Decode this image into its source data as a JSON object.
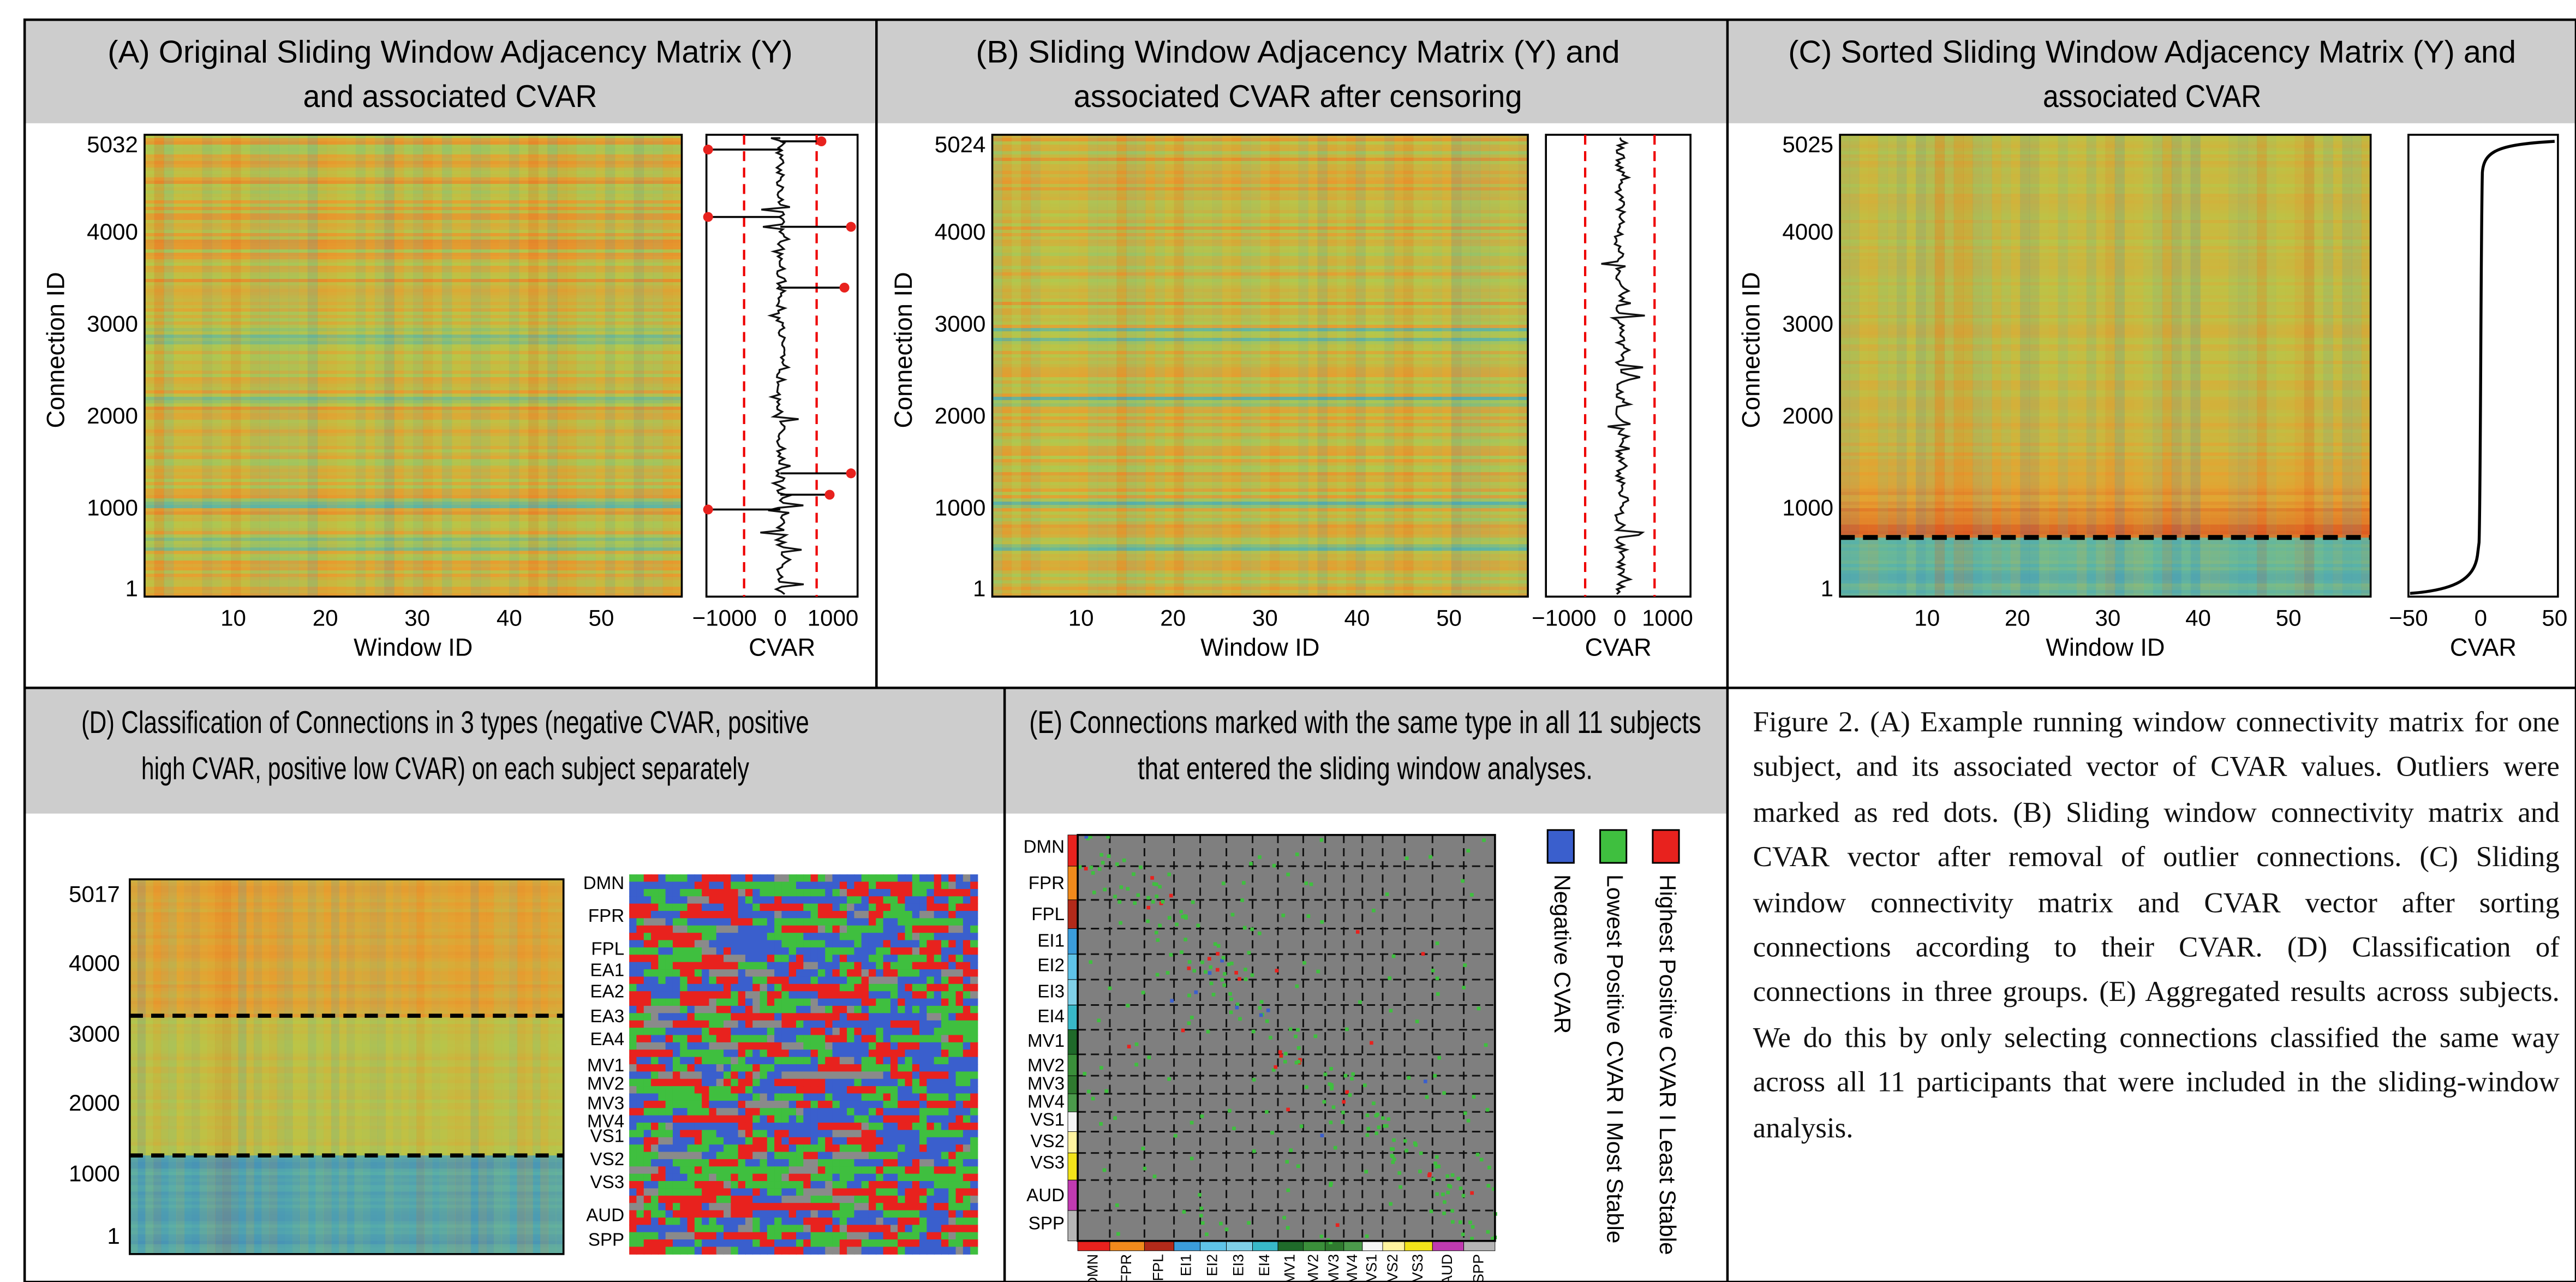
{
  "panels": {
    "a": {
      "title": [
        "(A) Original Sliding Window Adjacency Matrix (Y)",
        "and associated CVAR"
      ],
      "y_label": "Connection ID",
      "y_ticks": [
        "5032",
        "4000",
        "3000",
        "2000",
        "1000",
        "1"
      ],
      "x_label": "Window ID",
      "x_ticks": [
        "10",
        "20",
        "30",
        "40",
        "50"
      ],
      "cvar_label": "CVAR",
      "cvar_ticks": [
        "−1000",
        "0",
        "1000"
      ]
    },
    "b": {
      "title": [
        "(B) Sliding Window Adjacency Matrix (Y) and",
        "associated CVAR after censoring"
      ],
      "y_label": "Connection ID",
      "y_ticks": [
        "5024",
        "4000",
        "3000",
        "2000",
        "1000",
        "1"
      ],
      "x_label": "Window ID",
      "x_ticks": [
        "10",
        "20",
        "30",
        "40",
        "50"
      ],
      "cvar_label": "CVAR",
      "cvar_ticks": [
        "−1000",
        "0",
        "1000"
      ]
    },
    "c": {
      "title": [
        "(C) Sorted Sliding Window Adjacency Matrix (Y) and",
        "associated CVAR"
      ],
      "y_label": "Connection ID",
      "y_ticks": [
        "5025",
        "4000",
        "3000",
        "2000",
        "1000",
        "1"
      ],
      "x_label": "Window ID",
      "x_ticks": [
        "10",
        "20",
        "30",
        "40",
        "50"
      ],
      "cvar_label": "CVAR",
      "cvar_ticks": [
        "−50",
        "0",
        "50"
      ]
    },
    "d": {
      "title": [
        "(D) Classification of Connections in 3 types (negative CVAR, positive",
        "high CVAR, positive low CVAR) on each subject separately"
      ],
      "y_ticks": [
        "5017",
        "4000",
        "3000",
        "2000",
        "1000",
        "1"
      ],
      "networks": [
        "DMN",
        "FPR",
        "FPL",
        "EA1",
        "EA2",
        "EA3",
        "EA4",
        "MV1",
        "MV2",
        "MV3",
        "MV4",
        "VS1",
        "VS2",
        "VS3",
        "AUD",
        "SPP"
      ]
    },
    "e": {
      "title": [
        "(E) Connections marked with the same type in all 11 subjects",
        "that entered the sliding window analyses."
      ],
      "networks": [
        "DMN",
        "FPR",
        "FPL",
        "EI1",
        "EI2",
        "EI3",
        "EI4",
        "MV1",
        "MV2",
        "MV3",
        "MV4",
        "VS1",
        "VS2",
        "VS3",
        "AUD",
        "SPP"
      ],
      "legend": [
        "Negative CVAR",
        "Lowest Positive CVAR I Most Stable",
        "Highest Positive CVAR I Least Stable"
      ]
    }
  },
  "caption": "Figure 2. (A) Example running window connectivity matrix for one subject, and its associated vector of CVAR values. Outliers were marked as red dots. (B) Sliding window connectivity matrix and CVAR vector after removal of outlier connections. (C) Sliding window connectivity matrix and CVAR vector after sorting connections according to their CVAR. (D) Classification of connections in three groups. (E) Aggregated results across subjects. We do this by only selecting connections classified the same way across all 11 participants that were included in the sliding-window analysis."
}
